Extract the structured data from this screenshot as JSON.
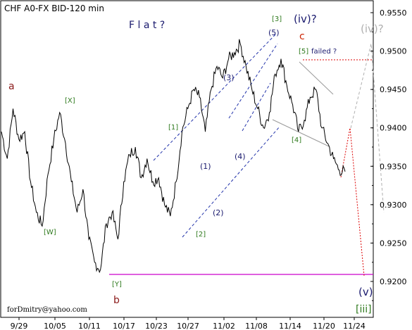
{
  "chart_data": {
    "type": "line",
    "title": "CHF A0-FX BID-120 min",
    "x_ticks": [
      "9/29",
      "10/05",
      "10/11",
      "10/17",
      "10/23",
      "10/27",
      "11/02",
      "11/08",
      "11/14",
      "11/20",
      "11/24"
    ],
    "y_ticks": [
      "0.9550",
      "0.9500",
      "0.9450",
      "0.9400",
      "0.9350",
      "0.9300",
      "0.9250",
      "0.9200"
    ],
    "ylim": [
      0.9175,
      0.9565
    ],
    "grid": false,
    "series": [
      {
        "values": [
          [
            0,
            0.9395
          ],
          [
            1,
            0.936
          ],
          [
            2,
            0.9425
          ],
          [
            3,
            0.9385
          ],
          [
            4,
            0.9395
          ],
          [
            5,
            0.933
          ],
          [
            6,
            0.929
          ],
          [
            7,
            0.9272
          ],
          [
            8,
            0.934
          ],
          [
            9,
            0.9385
          ],
          [
            10,
            0.942
          ],
          [
            11,
            0.938
          ],
          [
            12,
            0.933
          ],
          [
            13,
            0.929
          ],
          [
            14,
            0.932
          ],
          [
            15,
            0.9255
          ],
          [
            16,
            0.9225
          ],
          [
            17,
            0.9215
          ],
          [
            18,
            0.9275
          ],
          [
            19,
            0.929
          ],
          [
            20,
            0.9255
          ],
          [
            21,
            0.933
          ],
          [
            22,
            0.9365
          ],
          [
            23,
            0.9375
          ],
          [
            24,
            0.9335
          ],
          [
            25,
            0.936
          ],
          [
            26,
            0.933
          ],
          [
            27,
            0.9335
          ],
          [
            28,
            0.93
          ],
          [
            29,
            0.9285
          ],
          [
            30,
            0.933
          ],
          [
            31,
            0.9395
          ],
          [
            32,
            0.9425
          ],
          [
            33,
            0.945
          ],
          [
            34,
            0.944
          ],
          [
            35,
            0.9395
          ],
          [
            36,
            0.945
          ],
          [
            37,
            0.948
          ],
          [
            38,
            0.9465
          ],
          [
            39,
            0.949
          ],
          [
            40,
            0.9498
          ],
          [
            41,
            0.951
          ],
          [
            42,
            0.948
          ],
          [
            43,
            0.945
          ],
          [
            44,
            0.9425
          ],
          [
            45,
            0.94
          ],
          [
            46,
            0.942
          ],
          [
            47,
            0.947
          ],
          [
            48,
            0.949
          ],
          [
            49,
            0.9455
          ],
          [
            50,
            0.943
          ],
          [
            51,
            0.9395
          ],
          [
            52,
            0.941
          ],
          [
            53,
            0.944
          ],
          [
            54,
            0.945
          ],
          [
            55,
            0.94
          ],
          [
            56,
            0.938
          ],
          [
            57,
            0.936
          ],
          [
            58,
            0.9345
          ],
          [
            59,
            0.9343
          ]
        ]
      }
    ],
    "annotations": {
      "flat": "F l a t ?",
      "a": "a",
      "b": "b",
      "c": "c",
      "X": "[X]",
      "W": "[W]",
      "Y": "[Y]",
      "one": "[1]",
      "two": "[2]",
      "three": "[3]",
      "four": "[4]",
      "five": "[5]",
      "failed": "failed ?",
      "w1": "(1)",
      "w2": "(2)",
      "w3": "(3)",
      "w4": "(4)",
      "w5": "(5)",
      "iv": "(iv)?",
      "iv_gray": "(iv)?",
      "v": "(v)",
      "iii": "[iii]",
      "email": "forDmitry@yahoo.com"
    },
    "colors": {
      "price": "#000000",
      "support_line": "#cc00cc",
      "channel": "#2233aa",
      "projection_red": "#dd0000",
      "projection_gray": "#b0b0b0",
      "wave_green": "#2f7a1e",
      "wave_brown": "#8b1a1a",
      "wave_blue": "#1a1a6e",
      "wave_red": "#cc2200"
    }
  }
}
